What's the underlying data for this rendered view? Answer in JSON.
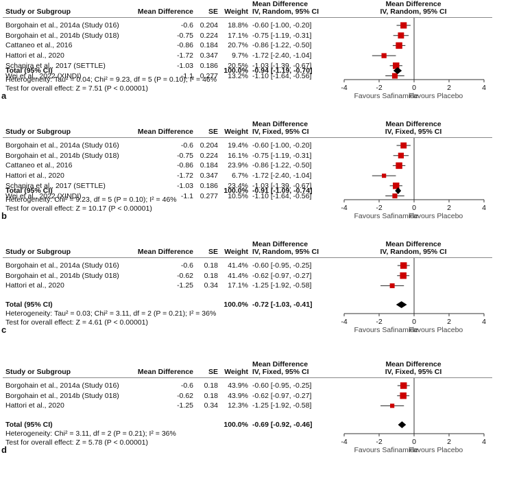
{
  "columns": {
    "study": "Study or Subgroup",
    "md": "Mean Difference",
    "se": "SE",
    "weight": "Weight",
    "ci_head1": "Mean Difference",
    "plot_head1": "Mean Difference"
  },
  "colors": {
    "box": "#cc0000",
    "line": "#222222",
    "diamond": "#000000"
  },
  "chart_data": [
    {
      "type": "scatter",
      "panel": "a",
      "method": "IV, Random, 95% CI",
      "xlim": [
        -4,
        4
      ],
      "ticks": [
        "-4",
        "-2",
        "0",
        "2",
        "4"
      ],
      "tick_values": [
        -4,
        -2,
        0,
        2,
        4
      ],
      "favours_left": "Favours Safinamide",
      "favours_right": "Favours Placebo",
      "studies": [
        {
          "name": "Borgohain et al., 2014a (Study 016)",
          "md": "-0.6",
          "se": "0.204",
          "weight": "18.8%",
          "ci": "-0.60 [-1.00, -0.20]",
          "est": -0.6,
          "lo": -1.0,
          "hi": -0.2,
          "w": 18.8
        },
        {
          "name": "Borgohain et al., 2014b (Study 018)",
          "md": "-0.75",
          "se": "0.224",
          "weight": "17.1%",
          "ci": "-0.75 [-1.19, -0.31]",
          "est": -0.75,
          "lo": -1.19,
          "hi": -0.31,
          "w": 17.1
        },
        {
          "name": "Cattaneo et al., 2016",
          "md": "-0.86",
          "se": "0.184",
          "weight": "20.7%",
          "ci": "-0.86 [-1.22, -0.50]",
          "est": -0.86,
          "lo": -1.22,
          "hi": -0.5,
          "w": 20.7
        },
        {
          "name": "Hattori et al., 2020",
          "md": "-1.72",
          "se": "0.347",
          "weight": "9.7%",
          "ci": "-1.72 [-2.40, -1.04]",
          "est": -1.72,
          "lo": -2.4,
          "hi": -1.04,
          "w": 9.7
        },
        {
          "name": "Schapira et al., 2017 (SETTLE)",
          "md": "-1.03",
          "se": "0.186",
          "weight": "20.5%",
          "ci": "-1.03 [-1.39, -0.67]",
          "est": -1.03,
          "lo": -1.39,
          "hi": -0.67,
          "w": 20.5
        },
        {
          "name": "Wei et al., 2022 (XINDI)",
          "md": "-1.1",
          "se": "0.277",
          "weight": "13.2%",
          "ci": "-1.10 [-1.64, -0.56]",
          "est": -1.1,
          "lo": -1.64,
          "hi": -0.56,
          "w": 13.2
        }
      ],
      "total": {
        "label": "Total (95% CI)",
        "weight": "100.0%",
        "ci": "-0.94 [-1.19, -0.70]",
        "est": -0.94,
        "lo": -1.19,
        "hi": -0.7
      },
      "heterogeneity": "Heterogeneity: Tau² = 0.04; Chi² = 9.23, df = 5 (P = 0.10); I² = 46%",
      "overall": "Test for overall effect: Z = 7.51 (P < 0.00001)"
    },
    {
      "type": "scatter",
      "panel": "b",
      "method": "IV, Fixed, 95% CI",
      "xlim": [
        -4,
        4
      ],
      "ticks": [
        "-4",
        "-2",
        "0",
        "2",
        "4"
      ],
      "tick_values": [
        -4,
        -2,
        0,
        2,
        4
      ],
      "favours_left": "Favours Safinamide",
      "favours_right": "Favours Placebo",
      "studies": [
        {
          "name": "Borgohain et al., 2014a (Study 016)",
          "md": "-0.6",
          "se": "0.204",
          "weight": "19.4%",
          "ci": "-0.60 [-1.00, -0.20]",
          "est": -0.6,
          "lo": -1.0,
          "hi": -0.2,
          "w": 19.4
        },
        {
          "name": "Borgohain et al., 2014b (Study 018)",
          "md": "-0.75",
          "se": "0.224",
          "weight": "16.1%",
          "ci": "-0.75 [-1.19, -0.31]",
          "est": -0.75,
          "lo": -1.19,
          "hi": -0.31,
          "w": 16.1
        },
        {
          "name": "Cattaneo et al., 2016",
          "md": "-0.86",
          "se": "0.184",
          "weight": "23.9%",
          "ci": "-0.86 [-1.22, -0.50]",
          "est": -0.86,
          "lo": -1.22,
          "hi": -0.5,
          "w": 23.9
        },
        {
          "name": "Hattori et al., 2020",
          "md": "-1.72",
          "se": "0.347",
          "weight": "6.7%",
          "ci": "-1.72 [-2.40, -1.04]",
          "est": -1.72,
          "lo": -2.4,
          "hi": -1.04,
          "w": 6.7
        },
        {
          "name": "Schapira et al., 2017 (SETTLE)",
          "md": "-1.03",
          "se": "0.186",
          "weight": "23.4%",
          "ci": "-1.03 [-1.39, -0.67]",
          "est": -1.03,
          "lo": -1.39,
          "hi": -0.67,
          "w": 23.4
        },
        {
          "name": "Wei et al., 2022 (XINDI)",
          "md": "-1.1",
          "se": "0.277",
          "weight": "10.5%",
          "ci": "-1.10 [-1.64, -0.56]",
          "est": -1.1,
          "lo": -1.64,
          "hi": -0.56,
          "w": 10.5
        }
      ],
      "total": {
        "label": "Total (95% CI)",
        "weight": "100.0%",
        "ci": "-0.91 [-1.09, -0.74]",
        "est": -0.91,
        "lo": -1.09,
        "hi": -0.74
      },
      "heterogeneity": "Heterogeneity: Chi² = 9.23, df = 5 (P = 0.10); I² = 46%",
      "overall": "Test for overall effect: Z = 10.17 (P < 0.00001)"
    },
    {
      "type": "scatter",
      "panel": "c",
      "method": "IV, Random, 95% CI",
      "xlim": [
        -4,
        4
      ],
      "ticks": [
        "-4",
        "-2",
        "0",
        "2",
        "4"
      ],
      "tick_values": [
        -4,
        -2,
        0,
        2,
        4
      ],
      "favours_left": "Favours Safinamide",
      "favours_right": "Favours Placebo",
      "studies": [
        {
          "name": "Borgohain et al., 2014a (Study 016)",
          "md": "-0.6",
          "se": "0.18",
          "weight": "41.4%",
          "ci": "-0.60 [-0.95, -0.25]",
          "est": -0.6,
          "lo": -0.95,
          "hi": -0.25,
          "w": 41.4
        },
        {
          "name": "Borgohain et al., 2014b (Study 018)",
          "md": "-0.62",
          "se": "0.18",
          "weight": "41.4%",
          "ci": "-0.62 [-0.97, -0.27]",
          "est": -0.62,
          "lo": -0.97,
          "hi": -0.27,
          "w": 41.4
        },
        {
          "name": "Hattori et al., 2020",
          "md": "-1.25",
          "se": "0.34",
          "weight": "17.1%",
          "ci": "-1.25 [-1.92, -0.58]",
          "est": -1.25,
          "lo": -1.92,
          "hi": -0.58,
          "w": 17.1
        }
      ],
      "total": {
        "label": "Total (95% CI)",
        "weight": "100.0%",
        "ci": "-0.72 [-1.03, -0.41]",
        "est": -0.72,
        "lo": -1.03,
        "hi": -0.41
      },
      "heterogeneity": "Heterogeneity: Tau² = 0.03; Chi² = 3.11, df = 2 (P = 0.21); I² = 36%",
      "overall": "Test for overall effect: Z = 4.61 (P < 0.00001)"
    },
    {
      "type": "scatter",
      "panel": "d",
      "method": "IV, Fixed, 95% CI",
      "xlim": [
        -4,
        4
      ],
      "ticks": [
        "-4",
        "-2",
        "0",
        "2",
        "4"
      ],
      "tick_values": [
        -4,
        -2,
        0,
        2,
        4
      ],
      "favours_left": "Favours Safinamide",
      "favours_right": "Favours Placebo",
      "studies": [
        {
          "name": "Borgohain et al., 2014a (Study 016)",
          "md": "-0.6",
          "se": "0.18",
          "weight": "43.9%",
          "ci": "-0.60 [-0.95, -0.25]",
          "est": -0.6,
          "lo": -0.95,
          "hi": -0.25,
          "w": 43.9
        },
        {
          "name": "Borgohain et al., 2014b (Study 018)",
          "md": "-0.62",
          "se": "0.18",
          "weight": "43.9%",
          "ci": "-0.62 [-0.97, -0.27]",
          "est": -0.62,
          "lo": -0.97,
          "hi": -0.27,
          "w": 43.9
        },
        {
          "name": "Hattori et al., 2020",
          "md": "-1.25",
          "se": "0.34",
          "weight": "12.3%",
          "ci": "-1.25 [-1.92, -0.58]",
          "est": -1.25,
          "lo": -1.92,
          "hi": -0.58,
          "w": 12.3
        }
      ],
      "total": {
        "label": "Total (95% CI)",
        "weight": "100.0%",
        "ci": "-0.69 [-0.92, -0.46]",
        "est": -0.69,
        "lo": -0.92,
        "hi": -0.46
      },
      "heterogeneity": "Heterogeneity: Chi² = 3.11, df = 2 (P = 0.21); I² = 36%",
      "overall": "Test for overall effect: Z = 5.78 (P < 0.00001)"
    }
  ]
}
